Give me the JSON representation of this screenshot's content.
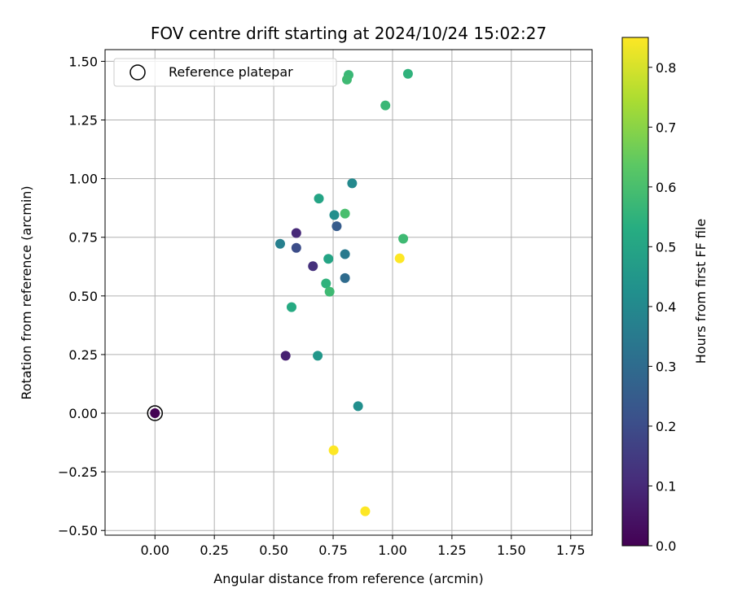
{
  "chart_data": {
    "type": "scatter",
    "title": "FOV centre drift starting at 2024/10/24 15:02:27",
    "xlabel": "Angular distance from reference (arcmin)",
    "ylabel": "Rotation from reference (arcmin)",
    "xlim": [
      -0.21,
      1.84
    ],
    "ylim": [
      -0.52,
      1.55
    ],
    "xticks": [
      "0.00",
      "0.25",
      "0.50",
      "0.75",
      "1.00",
      "1.25",
      "1.50",
      "1.75"
    ],
    "xtick_values": [
      0.0,
      0.25,
      0.5,
      0.75,
      1.0,
      1.25,
      1.5,
      1.75
    ],
    "yticks": [
      "1.50",
      "1.25",
      "1.00",
      "0.75",
      "0.50",
      "0.25",
      "0.00",
      "−0.25",
      "−0.50"
    ],
    "ytick_values": [
      1.5,
      1.25,
      1.0,
      0.75,
      0.5,
      0.25,
      0.0,
      -0.25,
      -0.5
    ],
    "grid": true,
    "legend": {
      "position": "top-left",
      "entries": [
        "Reference platepar"
      ]
    },
    "colorbar": {
      "label": "Hours from first FF file",
      "colormap": "viridis",
      "range": [
        0.0,
        0.85
      ],
      "ticks": [
        "0.0",
        "0.1",
        "0.2",
        "0.3",
        "0.4",
        "0.5",
        "0.6",
        "0.7",
        "0.8"
      ],
      "tick_values": [
        0.0,
        0.1,
        0.2,
        0.3,
        0.4,
        0.5,
        0.6,
        0.7,
        0.8
      ]
    },
    "reference_point": {
      "x": 0.0,
      "y": 0.0
    },
    "points": [
      {
        "x": 0.0,
        "y": 0.0,
        "t": 0.0
      },
      {
        "x": 0.55,
        "y": 0.245,
        "t": 0.08
      },
      {
        "x": 0.595,
        "y": 0.768,
        "t": 0.1
      },
      {
        "x": 0.665,
        "y": 0.627,
        "t": 0.12
      },
      {
        "x": 0.595,
        "y": 0.705,
        "t": 0.2
      },
      {
        "x": 0.765,
        "y": 0.797,
        "t": 0.25
      },
      {
        "x": 0.8,
        "y": 0.576,
        "t": 0.3
      },
      {
        "x": 0.8,
        "y": 0.678,
        "t": 0.35
      },
      {
        "x": 0.527,
        "y": 0.722,
        "t": 0.37
      },
      {
        "x": 0.83,
        "y": 0.98,
        "t": 0.4
      },
      {
        "x": 0.755,
        "y": 0.845,
        "t": 0.42
      },
      {
        "x": 0.855,
        "y": 0.03,
        "t": 0.42
      },
      {
        "x": 0.685,
        "y": 0.245,
        "t": 0.45
      },
      {
        "x": 0.69,
        "y": 0.915,
        "t": 0.5
      },
      {
        "x": 0.73,
        "y": 0.658,
        "t": 0.5
      },
      {
        "x": 0.575,
        "y": 0.452,
        "t": 0.52
      },
      {
        "x": 0.72,
        "y": 0.553,
        "t": 0.55
      },
      {
        "x": 0.735,
        "y": 0.518,
        "t": 0.58
      },
      {
        "x": 0.8,
        "y": 0.851,
        "t": 0.6
      },
      {
        "x": 1.045,
        "y": 0.744,
        "t": 0.58
      },
      {
        "x": 0.97,
        "y": 1.312,
        "t": 0.57
      },
      {
        "x": 1.065,
        "y": 1.447,
        "t": 0.55
      },
      {
        "x": 0.815,
        "y": 1.442,
        "t": 0.57
      },
      {
        "x": 0.808,
        "y": 1.422,
        "t": 0.58
      },
      {
        "x": 1.03,
        "y": 0.66,
        "t": 0.85
      },
      {
        "x": 0.752,
        "y": -0.158,
        "t": 0.85
      },
      {
        "x": 0.885,
        "y": -0.418,
        "t": 0.85
      }
    ]
  }
}
